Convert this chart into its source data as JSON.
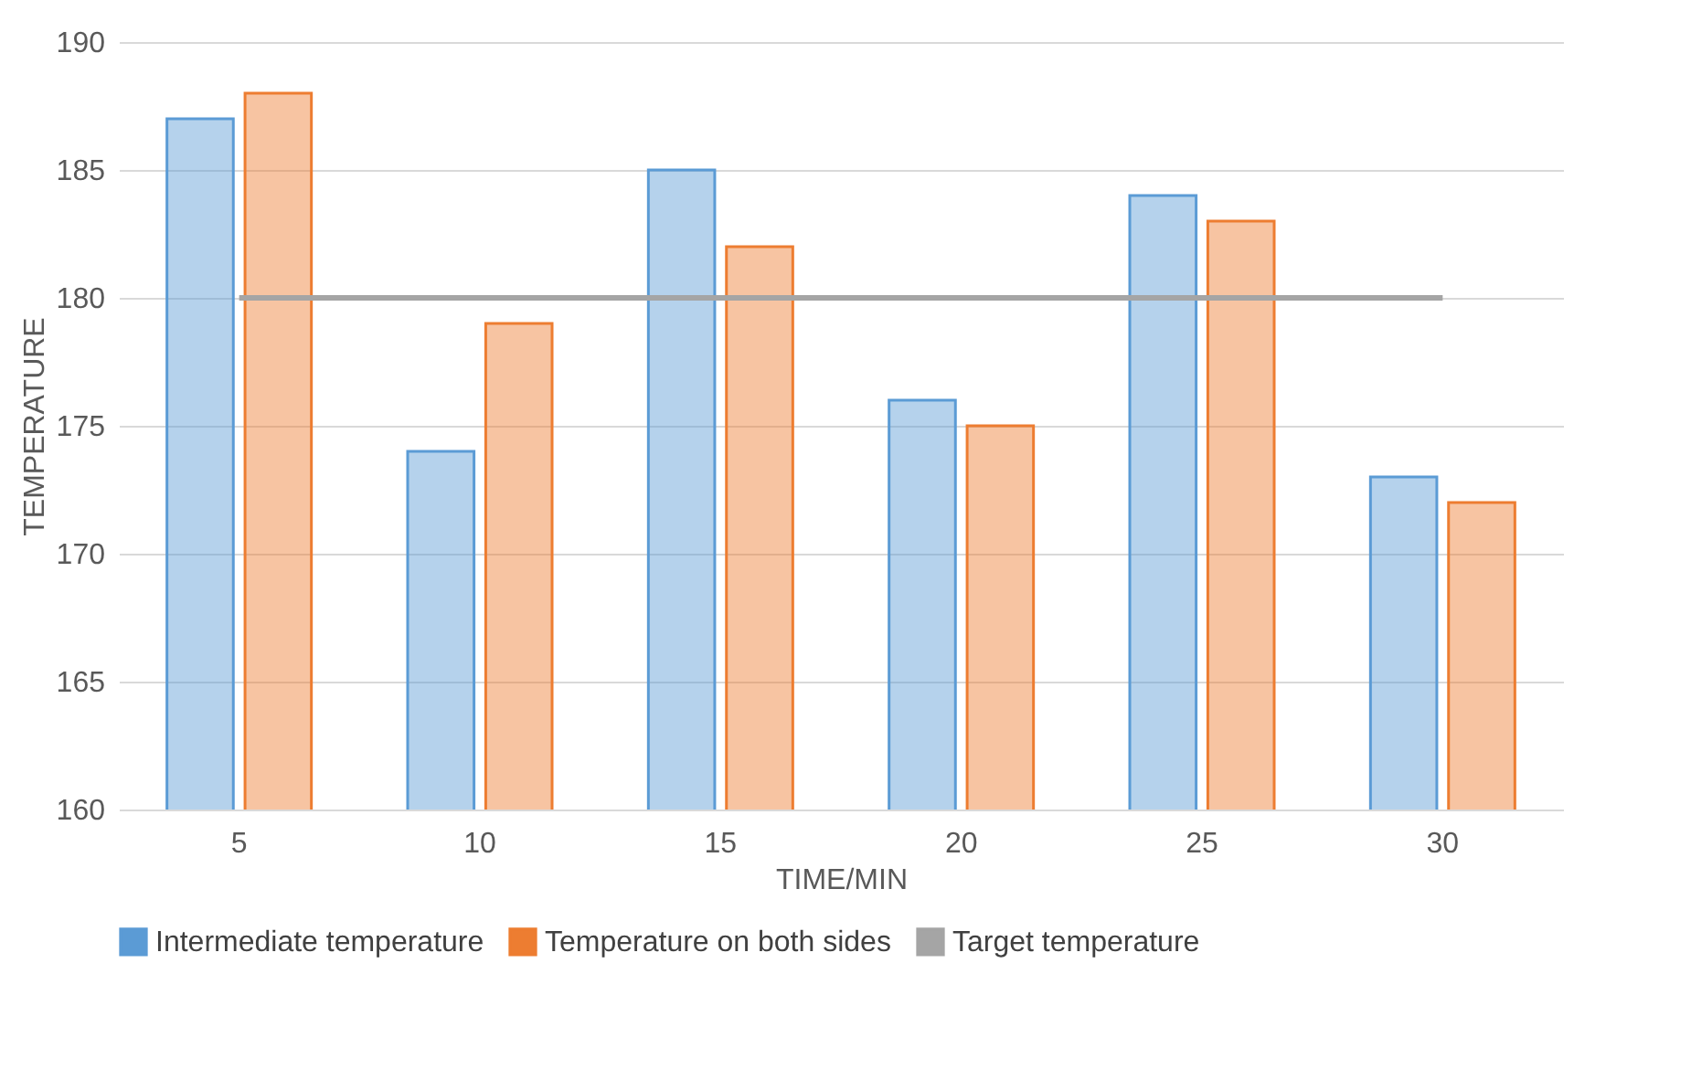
{
  "chart_data": {
    "type": "bar",
    "xlabel": "TIME/MIN",
    "ylabel": "TEMPERATURE",
    "categories": [
      "5",
      "10",
      "15",
      "20",
      "25",
      "30"
    ],
    "series": [
      {
        "name": "Intermediate temperature",
        "color": "#5b9bd5",
        "values": [
          187,
          174,
          185,
          176,
          184,
          173
        ]
      },
      {
        "name": "Temperature on both sides",
        "color": "#ed7d31",
        "values": [
          188,
          179,
          182,
          175,
          183,
          172
        ]
      },
      {
        "name": "Target temperature",
        "type": "line",
        "color": "#a5a5a5",
        "values": [
          180,
          180,
          180,
          180,
          180,
          180
        ]
      }
    ],
    "ylim": [
      160,
      190
    ],
    "yticks": [
      160,
      165,
      170,
      175,
      180,
      185,
      190
    ],
    "grid": "y",
    "legend": "bottom"
  }
}
